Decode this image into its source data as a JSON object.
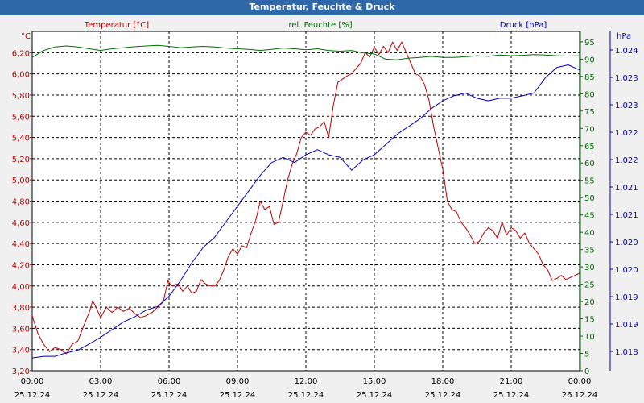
{
  "title": "Temperatur, Feuchte & Druck",
  "colors": {
    "temperature": "#c00000",
    "humidity": "#007000",
    "pressure": "#0000c0",
    "title_bg": "#2f68a8",
    "plot_bg": "#ffffff",
    "grid": "#000000"
  },
  "chart_data": {
    "type": "line",
    "title": "Temperatur, Feuchte & Druck",
    "axes": {
      "temperature": {
        "header": "Temperatur [°C]",
        "unit": "°C",
        "min": 3.2,
        "max": 6.4,
        "ticks": [
          "6,20",
          "6,00",
          "5,80",
          "5,60",
          "5,40",
          "5,20",
          "5,00",
          "4,80",
          "4,60",
          "4,40",
          "4,20",
          "4,00",
          "3,80",
          "3,60",
          "3,40",
          "3,20"
        ]
      },
      "humidity": {
        "header": "rel. Feuchte [%]",
        "unit": "%",
        "min": 0,
        "max": 98,
        "ticks": [
          "95",
          "90",
          "85",
          "80",
          "75",
          "70",
          "65",
          "60",
          "55",
          "50",
          "45",
          "40",
          "35",
          "30",
          "25",
          "20",
          "15",
          "10",
          "5",
          "0"
        ]
      },
      "pressure": {
        "header": "Druck [hPa]",
        "unit": "hPa",
        "min": 1017.7,
        "max": 1024.3,
        "ticks": [
          "1.024",
          "1.023",
          "1.023",
          "1.022",
          "1.022",
          "1.021",
          "1.021",
          "1.020",
          "1.020",
          "1.019",
          "1.019",
          "1.018"
        ]
      }
    },
    "x_ticks": [
      {
        "time": "00:00",
        "date": "25.12.24"
      },
      {
        "time": "03:00",
        "date": "25.12.24"
      },
      {
        "time": "06:00",
        "date": "25.12.24"
      },
      {
        "time": "09:00",
        "date": "25.12.24"
      },
      {
        "time": "12:00",
        "date": "25.12.24"
      },
      {
        "time": "15:00",
        "date": "25.12.24"
      },
      {
        "time": "18:00",
        "date": "25.12.24"
      },
      {
        "time": "21:00",
        "date": "25.12.24"
      },
      {
        "time": "00:00",
        "date": "26.12.24"
      }
    ],
    "x_range_hours": [
      0,
      24
    ],
    "series": [
      {
        "name": "Temperatur [°C]",
        "color": "#c00000",
        "axis": "temperature",
        "points": [
          [
            0,
            3.72
          ],
          [
            0.25,
            3.55
          ],
          [
            0.5,
            3.45
          ],
          [
            0.75,
            3.38
          ],
          [
            1.0,
            3.42
          ],
          [
            1.25,
            3.4
          ],
          [
            1.5,
            3.36
          ],
          [
            1.75,
            3.45
          ],
          [
            2.0,
            3.48
          ],
          [
            2.25,
            3.62
          ],
          [
            2.5,
            3.75
          ],
          [
            2.65,
            3.86
          ],
          [
            2.8,
            3.8
          ],
          [
            3.0,
            3.7
          ],
          [
            3.25,
            3.8
          ],
          [
            3.5,
            3.75
          ],
          [
            3.75,
            3.8
          ],
          [
            4.0,
            3.76
          ],
          [
            4.25,
            3.79
          ],
          [
            4.5,
            3.74
          ],
          [
            4.75,
            3.7
          ],
          [
            5.0,
            3.72
          ],
          [
            5.25,
            3.75
          ],
          [
            5.5,
            3.8
          ],
          [
            5.75,
            3.85
          ],
          [
            5.95,
            4.05
          ],
          [
            6.1,
            4.0
          ],
          [
            6.4,
            4.02
          ],
          [
            6.6,
            3.95
          ],
          [
            6.8,
            4.0
          ],
          [
            7.0,
            3.93
          ],
          [
            7.2,
            3.95
          ],
          [
            7.4,
            4.06
          ],
          [
            7.6,
            4.02
          ],
          [
            7.8,
            4.0
          ],
          [
            8.0,
            4.0
          ],
          [
            8.2,
            4.05
          ],
          [
            8.4,
            4.15
          ],
          [
            8.6,
            4.28
          ],
          [
            8.8,
            4.35
          ],
          [
            9.0,
            4.3
          ],
          [
            9.2,
            4.38
          ],
          [
            9.4,
            4.36
          ],
          [
            9.6,
            4.5
          ],
          [
            9.8,
            4.62
          ],
          [
            10.0,
            4.8
          ],
          [
            10.2,
            4.72
          ],
          [
            10.4,
            4.75
          ],
          [
            10.6,
            4.58
          ],
          [
            10.8,
            4.6
          ],
          [
            11.0,
            4.8
          ],
          [
            11.2,
            5.0
          ],
          [
            11.4,
            5.15
          ],
          [
            11.6,
            5.25
          ],
          [
            11.8,
            5.4
          ],
          [
            12.0,
            5.45
          ],
          [
            12.2,
            5.42
          ],
          [
            12.4,
            5.48
          ],
          [
            12.6,
            5.5
          ],
          [
            12.8,
            5.55
          ],
          [
            13.0,
            5.4
          ],
          [
            13.2,
            5.7
          ],
          [
            13.4,
            5.92
          ],
          [
            13.6,
            5.95
          ],
          [
            13.8,
            5.98
          ],
          [
            14.0,
            6.0
          ],
          [
            14.2,
            6.05
          ],
          [
            14.4,
            6.1
          ],
          [
            14.6,
            6.2
          ],
          [
            14.8,
            6.16
          ],
          [
            15.0,
            6.25
          ],
          [
            15.2,
            6.18
          ],
          [
            15.4,
            6.26
          ],
          [
            15.6,
            6.2
          ],
          [
            15.8,
            6.3
          ],
          [
            16.0,
            6.22
          ],
          [
            16.2,
            6.3
          ],
          [
            16.4,
            6.2
          ],
          [
            16.6,
            6.1
          ],
          [
            16.8,
            6.0
          ],
          [
            17.0,
            5.98
          ],
          [
            17.2,
            5.9
          ],
          [
            17.4,
            5.75
          ],
          [
            17.6,
            5.5
          ],
          [
            17.8,
            5.3
          ],
          [
            18.0,
            5.1
          ],
          [
            18.2,
            4.8
          ],
          [
            18.4,
            4.72
          ],
          [
            18.6,
            4.7
          ],
          [
            18.8,
            4.6
          ],
          [
            19.0,
            4.55
          ],
          [
            19.2,
            4.48
          ],
          [
            19.4,
            4.4
          ],
          [
            19.6,
            4.42
          ],
          [
            19.8,
            4.5
          ],
          [
            20.0,
            4.55
          ],
          [
            20.2,
            4.52
          ],
          [
            20.4,
            4.45
          ],
          [
            20.6,
            4.6
          ],
          [
            20.8,
            4.48
          ],
          [
            21.0,
            4.55
          ],
          [
            21.2,
            4.52
          ],
          [
            21.4,
            4.45
          ],
          [
            21.6,
            4.5
          ],
          [
            21.8,
            4.4
          ],
          [
            22.0,
            4.35
          ],
          [
            22.2,
            4.3
          ],
          [
            22.4,
            4.2
          ],
          [
            22.6,
            4.15
          ],
          [
            22.8,
            4.05
          ],
          [
            23.0,
            4.07
          ],
          [
            23.2,
            4.1
          ],
          [
            23.4,
            4.06
          ],
          [
            23.6,
            4.08
          ],
          [
            23.8,
            4.1
          ],
          [
            24.0,
            4.12
          ]
        ]
      },
      {
        "name": "rel. Feuchte [%]",
        "color": "#007000",
        "axis": "humidity",
        "points": [
          [
            0,
            90.5
          ],
          [
            0.5,
            92.5
          ],
          [
            1.0,
            93.5
          ],
          [
            1.5,
            93.8
          ],
          [
            2.0,
            93.5
          ],
          [
            2.5,
            93.0
          ],
          [
            3.0,
            92.5
          ],
          [
            3.5,
            93.0
          ],
          [
            4.0,
            93.3
          ],
          [
            4.5,
            93.6
          ],
          [
            5.0,
            93.8
          ],
          [
            5.5,
            94.0
          ],
          [
            6.0,
            93.7
          ],
          [
            6.5,
            93.3
          ],
          [
            7.0,
            93.5
          ],
          [
            7.5,
            93.7
          ],
          [
            8.0,
            93.5
          ],
          [
            8.5,
            93.2
          ],
          [
            9.0,
            93.0
          ],
          [
            9.5,
            92.8
          ],
          [
            10.0,
            92.5
          ],
          [
            10.5,
            92.8
          ],
          [
            11.0,
            93.2
          ],
          [
            11.5,
            93.0
          ],
          [
            12.0,
            92.7
          ],
          [
            12.5,
            93.0
          ],
          [
            13.0,
            92.5
          ],
          [
            13.5,
            92.3
          ],
          [
            14.0,
            92.5
          ],
          [
            14.5,
            91.8
          ],
          [
            15.0,
            91.5
          ],
          [
            15.5,
            90.0
          ],
          [
            16.0,
            89.8
          ],
          [
            16.5,
            90.3
          ],
          [
            17.0,
            90.5
          ],
          [
            17.5,
            90.8
          ],
          [
            18.0,
            90.5
          ],
          [
            18.5,
            90.5
          ],
          [
            19.0,
            90.7
          ],
          [
            19.5,
            91.0
          ],
          [
            20.0,
            90.8
          ],
          [
            20.5,
            91.2
          ],
          [
            21.0,
            91.0
          ],
          [
            21.5,
            91.1
          ],
          [
            22.0,
            91.3
          ],
          [
            22.5,
            91.2
          ],
          [
            23.0,
            91.0
          ],
          [
            23.5,
            90.9
          ],
          [
            24.0,
            91.0
          ]
        ]
      },
      {
        "name": "Druck [hPa]",
        "color": "#0000c0",
        "axis": "pressure",
        "points": [
          [
            0,
            1017.95
          ],
          [
            0.5,
            1017.98
          ],
          [
            1.0,
            1017.98
          ],
          [
            1.5,
            1018.05
          ],
          [
            2.0,
            1018.1
          ],
          [
            2.5,
            1018.22
          ],
          [
            3.0,
            1018.35
          ],
          [
            3.5,
            1018.5
          ],
          [
            4.0,
            1018.65
          ],
          [
            4.5,
            1018.75
          ],
          [
            5.0,
            1018.88
          ],
          [
            5.5,
            1018.95
          ],
          [
            6.0,
            1019.15
          ],
          [
            6.5,
            1019.45
          ],
          [
            7.0,
            1019.8
          ],
          [
            7.5,
            1020.1
          ],
          [
            8.0,
            1020.3
          ],
          [
            8.5,
            1020.6
          ],
          [
            9.0,
            1020.9
          ],
          [
            9.5,
            1021.2
          ],
          [
            10.0,
            1021.5
          ],
          [
            10.5,
            1021.75
          ],
          [
            11.0,
            1021.85
          ],
          [
            11.5,
            1021.75
          ],
          [
            12.0,
            1021.9
          ],
          [
            12.5,
            1022.0
          ],
          [
            13.0,
            1021.9
          ],
          [
            13.5,
            1021.85
          ],
          [
            14.0,
            1021.6
          ],
          [
            14.5,
            1021.8
          ],
          [
            15.0,
            1021.9
          ],
          [
            15.5,
            1022.1
          ],
          [
            16.0,
            1022.3
          ],
          [
            16.5,
            1022.45
          ],
          [
            17.0,
            1022.6
          ],
          [
            17.5,
            1022.8
          ],
          [
            18.0,
            1022.95
          ],
          [
            18.5,
            1023.05
          ],
          [
            19.0,
            1023.1
          ],
          [
            19.5,
            1023.0
          ],
          [
            20.0,
            1022.95
          ],
          [
            20.5,
            1023.0
          ],
          [
            21.0,
            1023.0
          ],
          [
            21.5,
            1023.05
          ],
          [
            22.0,
            1023.1
          ],
          [
            22.5,
            1023.4
          ],
          [
            23.0,
            1023.6
          ],
          [
            23.5,
            1023.65
          ],
          [
            24.0,
            1023.55
          ]
        ]
      }
    ]
  }
}
